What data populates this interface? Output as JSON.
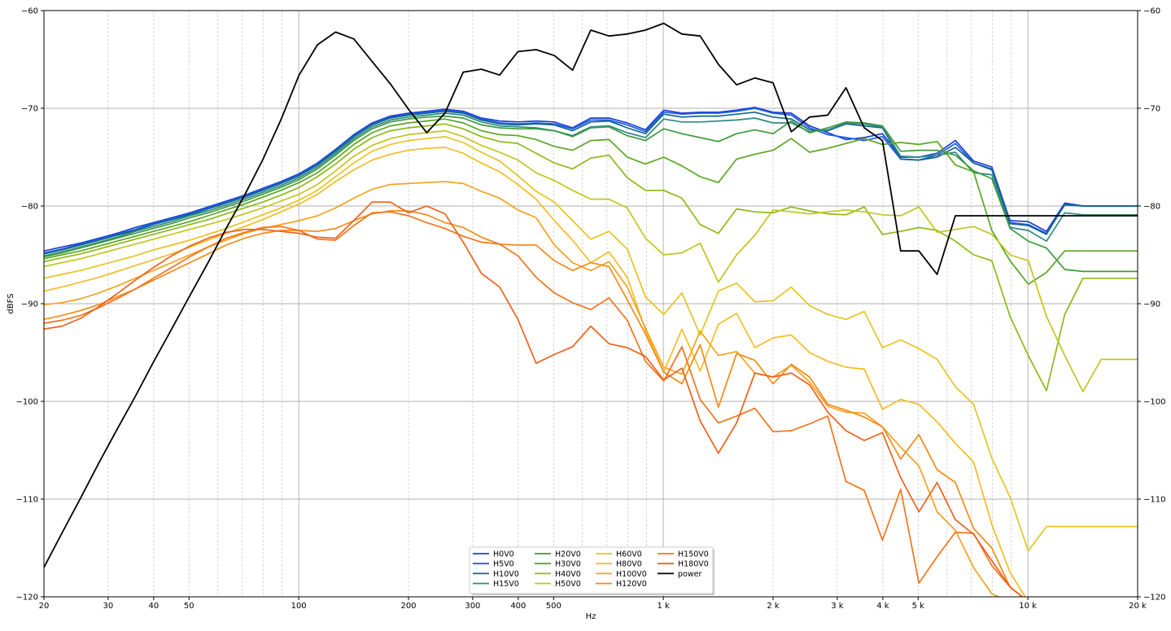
{
  "chart_data": {
    "type": "line",
    "xlabel": "Hz",
    "ylabel": "dBFS",
    "xscale": "log",
    "xlim": [
      20,
      20000
    ],
    "ylim": [
      -120,
      -60
    ],
    "grid": true,
    "legend_position": "bottom-center",
    "x_tick_labels": [
      {
        "value": 20,
        "label": "20"
      },
      {
        "value": 30,
        "label": "30"
      },
      {
        "value": 40,
        "label": "40"
      },
      {
        "value": 50,
        "label": "50"
      },
      {
        "value": 100,
        "label": "100"
      },
      {
        "value": 200,
        "label": "200"
      },
      {
        "value": 300,
        "label": "300"
      },
      {
        "value": 400,
        "label": "400"
      },
      {
        "value": 500,
        "label": "500"
      },
      {
        "value": 1000,
        "label": "1 k"
      },
      {
        "value": 2000,
        "label": "2 k"
      },
      {
        "value": 3000,
        "label": "3 k"
      },
      {
        "value": 4000,
        "label": "4 k"
      },
      {
        "value": 5000,
        "label": "5 k"
      },
      {
        "value": 10000,
        "label": "10 k"
      },
      {
        "value": 20000,
        "label": "20 k"
      }
    ],
    "y_ticks": [
      -60,
      -70,
      -80,
      -90,
      -100,
      -110,
      -120
    ],
    "y_tick_labels": [
      "−60",
      "−70",
      "−80",
      "−90",
      "−100",
      "−110",
      "−120"
    ],
    "x": [
      20,
      22.4,
      25.2,
      28.3,
      31.7,
      35.6,
      39.9,
      44.8,
      50.2,
      56.4,
      63.2,
      71,
      79.6,
      89.3,
      100.2,
      112.5,
      126.2,
      141.6,
      158.9,
      178.3,
      200,
      224.4,
      251.8,
      282.5,
      317,
      355.7,
      399.1,
      447.7,
      502.4,
      563.7,
      632.5,
      709.6,
      796.2,
      893.4,
      1002.4,
      1124.7,
      1261.9,
      1415.9,
      1588.7,
      1782.5,
      2000,
      2244,
      2517.9,
      2825.1,
      3169.8,
      3556.6,
      3990.5,
      4477.4,
      5023.8,
      5636.7,
      6324.6,
      7096.2,
      7962,
      8933.5,
      10023.7,
      11246.6,
      12618.8,
      14158.4,
      15885.9,
      17824.1,
      20000
    ],
    "series": [
      {
        "name": "H0V0",
        "color": "#1f3fd0",
        "values": [
          -84.6,
          -84.2,
          -83.8,
          -83.3,
          -82.8,
          -82.2,
          -81.7,
          -81.2,
          -80.7,
          -80.1,
          -79.5,
          -78.9,
          -78.2,
          -77.5,
          -76.7,
          -75.6,
          -74.2,
          -72.7,
          -71.5,
          -70.8,
          -70.5,
          -70.3,
          -70.1,
          -70.3,
          -71.0,
          -71.3,
          -71.4,
          -71.3,
          -71.4,
          -72.0,
          -71.0,
          -71.0,
          -71.5,
          -72.2,
          -70.2,
          -70.5,
          -70.4,
          -70.4,
          -70.2,
          -69.9,
          -70.4,
          -70.5,
          -71.8,
          -72.5,
          -73.2,
          -73.0,
          -72.6,
          -75.0,
          -75.0,
          -74.6,
          -73.3,
          -75.4,
          -76.0,
          -81.5,
          -81.6,
          -82.6,
          -79.7,
          -80.0,
          -80.0,
          -80.0,
          -80.0
        ]
      },
      {
        "name": "H5V0",
        "color": "#1a5ee8",
        "values": [
          -84.8,
          -84.4,
          -83.9,
          -83.4,
          -82.9,
          -82.4,
          -81.8,
          -81.3,
          -80.8,
          -80.2,
          -79.6,
          -79.0,
          -78.3,
          -77.6,
          -76.8,
          -75.7,
          -74.3,
          -72.8,
          -71.6,
          -70.9,
          -70.6,
          -70.4,
          -70.2,
          -70.4,
          -71.1,
          -71.5,
          -71.6,
          -71.5,
          -71.6,
          -72.1,
          -71.2,
          -71.2,
          -71.7,
          -72.4,
          -70.4,
          -70.6,
          -70.5,
          -70.5,
          -70.3,
          -70.0,
          -70.5,
          -70.7,
          -72.0,
          -72.7,
          -73.0,
          -73.3,
          -72.9,
          -75.2,
          -75.3,
          -74.8,
          -73.6,
          -75.6,
          -76.2,
          -81.7,
          -81.9,
          -82.8,
          -79.9,
          -80.0,
          -80.0,
          -80.0,
          -80.0
        ]
      },
      {
        "name": "H10V0",
        "color": "#13668a",
        "values": [
          -84.9,
          -84.5,
          -84.0,
          -83.5,
          -83.0,
          -82.5,
          -81.9,
          -81.4,
          -80.9,
          -80.3,
          -79.7,
          -79.1,
          -78.4,
          -77.7,
          -76.9,
          -75.8,
          -74.4,
          -72.9,
          -71.7,
          -71.0,
          -70.7,
          -70.5,
          -70.3,
          -70.5,
          -71.2,
          -71.6,
          -71.7,
          -71.6,
          -71.7,
          -72.3,
          -71.4,
          -71.3,
          -72.0,
          -72.6,
          -70.6,
          -70.9,
          -70.8,
          -70.8,
          -70.6,
          -70.4,
          -70.9,
          -71.1,
          -72.2,
          -72.3,
          -71.6,
          -71.8,
          -72.0,
          -75.2,
          -75.3,
          -75.0,
          -74.0,
          -75.6,
          -76.3,
          -81.8,
          -82.0,
          -82.9,
          -79.8,
          -80.0,
          -80.0,
          -80.0,
          -80.0
        ]
      },
      {
        "name": "H15V0",
        "color": "#2e8a86",
        "values": [
          -85.1,
          -84.7,
          -84.2,
          -83.7,
          -83.2,
          -82.6,
          -82.1,
          -81.6,
          -81.0,
          -80.5,
          -79.9,
          -79.3,
          -78.6,
          -77.9,
          -77.1,
          -76.0,
          -74.6,
          -73.1,
          -71.9,
          -71.2,
          -70.9,
          -70.7,
          -70.5,
          -70.7,
          -71.4,
          -71.8,
          -71.9,
          -72.0,
          -72.3,
          -72.8,
          -71.9,
          -71.8,
          -72.5,
          -73.0,
          -71.1,
          -71.4,
          -71.4,
          -71.3,
          -71.2,
          -71.0,
          -71.5,
          -71.5,
          -72.4,
          -72.2,
          -71.5,
          -71.6,
          -71.9,
          -74.9,
          -75.0,
          -74.8,
          -74.5,
          -76.6,
          -76.8,
          -82.2,
          -82.5,
          -83.6,
          -80.7,
          -80.9,
          -80.9,
          -80.9,
          -80.9
        ]
      },
      {
        "name": "H20V0",
        "color": "#3c9a3c",
        "values": [
          -85.2,
          -84.8,
          -84.3,
          -83.8,
          -83.3,
          -82.8,
          -82.3,
          -81.8,
          -81.2,
          -80.7,
          -80.1,
          -79.5,
          -78.8,
          -78.1,
          -77.3,
          -76.2,
          -74.8,
          -73.3,
          -72.1,
          -71.4,
          -71.1,
          -70.9,
          -70.8,
          -71.0,
          -71.7,
          -72.0,
          -72.1,
          -72.1,
          -72.3,
          -72.9,
          -72.0,
          -71.9,
          -72.8,
          -73.3,
          -72.1,
          -72.6,
          -73.0,
          -73.4,
          -72.6,
          -72.2,
          -72.6,
          -71.3,
          -72.5,
          -72.0,
          -71.4,
          -71.5,
          -71.8,
          -74.4,
          -74.3,
          -74.3,
          -74.8,
          -76.4,
          -77.2,
          -82.3,
          -83.6,
          -84.3,
          -86.5,
          -86.7,
          -86.7,
          -86.7,
          -86.7
        ]
      },
      {
        "name": "H30V0",
        "color": "#5aa624",
        "values": [
          -85.4,
          -85.0,
          -84.6,
          -84.1,
          -83.6,
          -83.1,
          -82.6,
          -82.1,
          -81.6,
          -81.0,
          -80.4,
          -79.8,
          -79.1,
          -78.4,
          -77.6,
          -76.6,
          -75.2,
          -73.7,
          -72.5,
          -71.8,
          -71.5,
          -71.3,
          -71.1,
          -71.5,
          -72.3,
          -72.7,
          -72.8,
          -73.2,
          -73.9,
          -74.3,
          -73.3,
          -73.2,
          -75.0,
          -75.7,
          -75.0,
          -75.9,
          -77.0,
          -77.6,
          -75.2,
          -74.7,
          -74.3,
          -73.1,
          -74.5,
          -74.1,
          -73.6,
          -73.1,
          -73.7,
          -73.5,
          -73.7,
          -73.4,
          -75.8,
          -76.5,
          -82.5,
          -85.6,
          -88.0,
          -86.8,
          -84.6,
          -84.6,
          -84.6,
          -84.6,
          -84.6
        ]
      },
      {
        "name": "H40V0",
        "color": "#8cba16",
        "values": [
          -85.7,
          -85.3,
          -84.9,
          -84.4,
          -83.9,
          -83.4,
          -82.9,
          -82.4,
          -81.9,
          -81.4,
          -80.8,
          -80.2,
          -79.6,
          -78.9,
          -78.1,
          -77.0,
          -75.7,
          -74.2,
          -73.0,
          -72.3,
          -72.0,
          -71.8,
          -71.6,
          -72.1,
          -72.9,
          -73.4,
          -73.6,
          -74.6,
          -75.6,
          -76.2,
          -75.1,
          -74.8,
          -77.1,
          -78.4,
          -78.4,
          -79.2,
          -81.9,
          -82.8,
          -80.3,
          -80.6,
          -80.7,
          -80.1,
          -80.5,
          -80.8,
          -80.9,
          -80.1,
          -82.9,
          -82.6,
          -82.2,
          -82.5,
          -83.6,
          -85.0,
          -85.6,
          -91.3,
          -95.3,
          -98.9,
          -91.1,
          -87.4,
          -87.4,
          -87.4,
          -87.4
        ]
      },
      {
        "name": "H50V0",
        "color": "#c3c51e",
        "values": [
          -86.2,
          -85.8,
          -85.4,
          -84.9,
          -84.4,
          -83.9,
          -83.4,
          -82.9,
          -82.4,
          -81.9,
          -81.4,
          -80.8,
          -80.2,
          -79.5,
          -78.8,
          -77.8,
          -76.4,
          -74.9,
          -73.8,
          -73.1,
          -72.7,
          -72.5,
          -72.3,
          -72.9,
          -73.8,
          -74.5,
          -75.3,
          -76.6,
          -77.4,
          -78.4,
          -79.3,
          -79.3,
          -80.2,
          -83.3,
          -85.0,
          -84.8,
          -83.8,
          -87.8,
          -85.0,
          -83.0,
          -80.4,
          -80.6,
          -80.8,
          -80.6,
          -80.4,
          -80.6,
          -80.9,
          -81.0,
          -80.1,
          -82.7,
          -82.4,
          -82.1,
          -82.9,
          -85.0,
          -85.6,
          -91.3,
          -95.3,
          -99.0,
          -95.7,
          -95.7,
          -95.7
        ]
      },
      {
        "name": "H60V0",
        "color": "#e8c420",
        "values": [
          -87.4,
          -87.0,
          -86.6,
          -86.1,
          -85.6,
          -85.1,
          -84.5,
          -84.0,
          -83.5,
          -82.9,
          -82.3,
          -81.6,
          -80.9,
          -80.2,
          -79.4,
          -78.4,
          -77.0,
          -75.6,
          -74.4,
          -73.7,
          -73.3,
          -73.1,
          -72.9,
          -73.5,
          -74.5,
          -75.4,
          -76.9,
          -78.5,
          -79.6,
          -81.5,
          -83.4,
          -82.6,
          -84.4,
          -89.3,
          -91.1,
          -88.9,
          -93.2,
          -88.7,
          -87.9,
          -89.8,
          -89.7,
          -88.3,
          -90.2,
          -91.1,
          -91.6,
          -90.8,
          -94.5,
          -93.7,
          -94.6,
          -95.7,
          -98.5,
          -100.3,
          -105.8,
          -109.8,
          -115.3,
          -112.8,
          -112.8,
          -112.8,
          -112.8,
          -112.8,
          -112.8
        ]
      },
      {
        "name": "H80V0",
        "color": "#f5bc24",
        "values": [
          -88.7,
          -88.3,
          -87.8,
          -87.3,
          -86.7,
          -86.1,
          -85.5,
          -84.9,
          -84.2,
          -83.5,
          -82.8,
          -82.1,
          -81.4,
          -80.6,
          -79.8,
          -78.8,
          -77.5,
          -76.3,
          -75.3,
          -74.7,
          -74.3,
          -74.1,
          -74.0,
          -74.6,
          -75.6,
          -76.5,
          -77.8,
          -79.3,
          -81.5,
          -83.5,
          -85.8,
          -84.7,
          -87.3,
          -92.7,
          -97.0,
          -92.6,
          -96.9,
          -92.1,
          -91.0,
          -94.5,
          -93.5,
          -93.2,
          -95.0,
          -95.9,
          -96.5,
          -96.7,
          -100.8,
          -99.8,
          -100.3,
          -102.1,
          -104.3,
          -106.2,
          -112.6,
          -117.5,
          -120.5,
          -120.5,
          -120.5,
          -120.5,
          -120.5,
          -120.5,
          -120.5
        ]
      },
      {
        "name": "H100V0",
        "color": "#f5a21e",
        "values": [
          -90.1,
          -89.9,
          -89.5,
          -88.9,
          -88.2,
          -87.4,
          -86.6,
          -85.8,
          -85.0,
          -84.2,
          -83.5,
          -82.8,
          -82.3,
          -81.9,
          -81.5,
          -81.0,
          -80.2,
          -79.2,
          -78.3,
          -77.8,
          -77.7,
          -77.6,
          -77.5,
          -77.7,
          -78.5,
          -79.2,
          -80.4,
          -81.2,
          -84.0,
          -85.8,
          -86.6,
          -85.7,
          -88.3,
          -92.5,
          -96.5,
          -97.2,
          -92.8,
          -95.3,
          -94.9,
          -97.1,
          -97.5,
          -96.3,
          -98.0,
          -100.5,
          -101.1,
          -101.2,
          -102.6,
          -104.7,
          -106.6,
          -111.3,
          -113.2,
          -117.0,
          -119.7,
          -120.5,
          -120.5,
          -120.5,
          -120.5,
          -120.5,
          -120.5,
          -120.5,
          -120.5
        ]
      },
      {
        "name": "H120V0",
        "color": "#f58a14",
        "values": [
          -91.6,
          -91.2,
          -90.7,
          -90.1,
          -89.3,
          -88.5,
          -87.6,
          -86.7,
          -85.8,
          -84.9,
          -84.0,
          -83.3,
          -82.8,
          -82.5,
          -82.5,
          -82.6,
          -82.3,
          -81.5,
          -80.8,
          -80.5,
          -80.5,
          -80.9,
          -81.7,
          -82.2,
          -83.2,
          -83.9,
          -84.0,
          -84.0,
          -85.6,
          -86.6,
          -85.8,
          -86.2,
          -89.6,
          -93.1,
          -97.0,
          -98.2,
          -94.2,
          -100.6,
          -95.1,
          -95.8,
          -98.2,
          -96.2,
          -97.5,
          -100.3,
          -100.9,
          -101.6,
          -102.6,
          -105.9,
          -103.4,
          -107.0,
          -108.3,
          -113.0,
          -115.0,
          -119.0,
          -120.5,
          -120.5,
          -120.5,
          -120.5,
          -120.5,
          -120.5,
          -120.5
        ]
      },
      {
        "name": "H150V0",
        "color": "#f5731a",
        "values": [
          -92.0,
          -91.7,
          -91.2,
          -90.4,
          -89.5,
          -88.5,
          -87.4,
          -86.3,
          -85.2,
          -84.2,
          -83.3,
          -82.7,
          -82.2,
          -82.1,
          -82.5,
          -83.4,
          -83.5,
          -82.0,
          -80.7,
          -80.6,
          -81.0,
          -81.7,
          -82.3,
          -83.1,
          -83.7,
          -83.9,
          -85.1,
          -87.3,
          -88.9,
          -89.9,
          -90.6,
          -89.4,
          -91.7,
          -95.9,
          -97.9,
          -94.4,
          -99.8,
          -102.2,
          -101.5,
          -100.7,
          -103.1,
          -103.0,
          -102.3,
          -101.5,
          -108.2,
          -109.1,
          -114.2,
          -109.0,
          -118.6,
          -115.9,
          -113.4,
          -113.5,
          -116.8,
          -119.0,
          -120.5,
          -120.5,
          -120.5,
          -120.5,
          -120.5,
          -120.5,
          -120.5
        ]
      },
      {
        "name": "H180V0",
        "color": "#f0601a",
        "values": [
          -92.6,
          -92.3,
          -91.5,
          -90.3,
          -89.0,
          -87.6,
          -86.3,
          -85.1,
          -84.1,
          -83.3,
          -82.7,
          -82.4,
          -82.4,
          -82.6,
          -82.8,
          -83.2,
          -83.3,
          -81.5,
          -79.6,
          -79.6,
          -80.7,
          -80.0,
          -80.8,
          -83.7,
          -86.9,
          -88.3,
          -91.6,
          -96.1,
          -95.2,
          -94.4,
          -92.3,
          -94.1,
          -94.5,
          -95.4,
          -97.8,
          -96.6,
          -102.0,
          -105.3,
          -102.2,
          -97.1,
          -97.5,
          -97.1,
          -98.3,
          -101.1,
          -103.0,
          -104.0,
          -103.2,
          -107.8,
          -111.3,
          -108.3,
          -112.1,
          -113.6,
          -116.3,
          -119.0,
          -120.5,
          -120.5,
          -120.5,
          -120.5,
          -120.5,
          -120.5,
          -120.5
        ]
      },
      {
        "name": "power",
        "color": "#000000",
        "values": [
          -117.0,
          -113.5,
          -109.9,
          -106.3,
          -102.9,
          -99.5,
          -96.0,
          -92.6,
          -89.2,
          -85.8,
          -82.3,
          -78.9,
          -75.3,
          -71.2,
          -66.6,
          -63.5,
          -62.2,
          -62.9,
          -65.2,
          -67.5,
          -70.1,
          -72.5,
          -70.5,
          -66.3,
          -66.0,
          -66.6,
          -64.2,
          -64.0,
          -64.6,
          -66.1,
          -62.0,
          -62.6,
          -62.4,
          -62.0,
          -61.3,
          -62.4,
          -62.6,
          -65.5,
          -67.6,
          -66.9,
          -67.4,
          -72.4,
          -70.9,
          -70.7,
          -67.9,
          -72.0,
          -73.3,
          -84.6,
          -84.6,
          -87.0,
          -81.0,
          -81.0,
          -81.0,
          -81.0,
          -81.0,
          -81.0,
          -81.0,
          -81.0,
          -81.0,
          -81.0,
          -81.0
        ]
      }
    ]
  }
}
